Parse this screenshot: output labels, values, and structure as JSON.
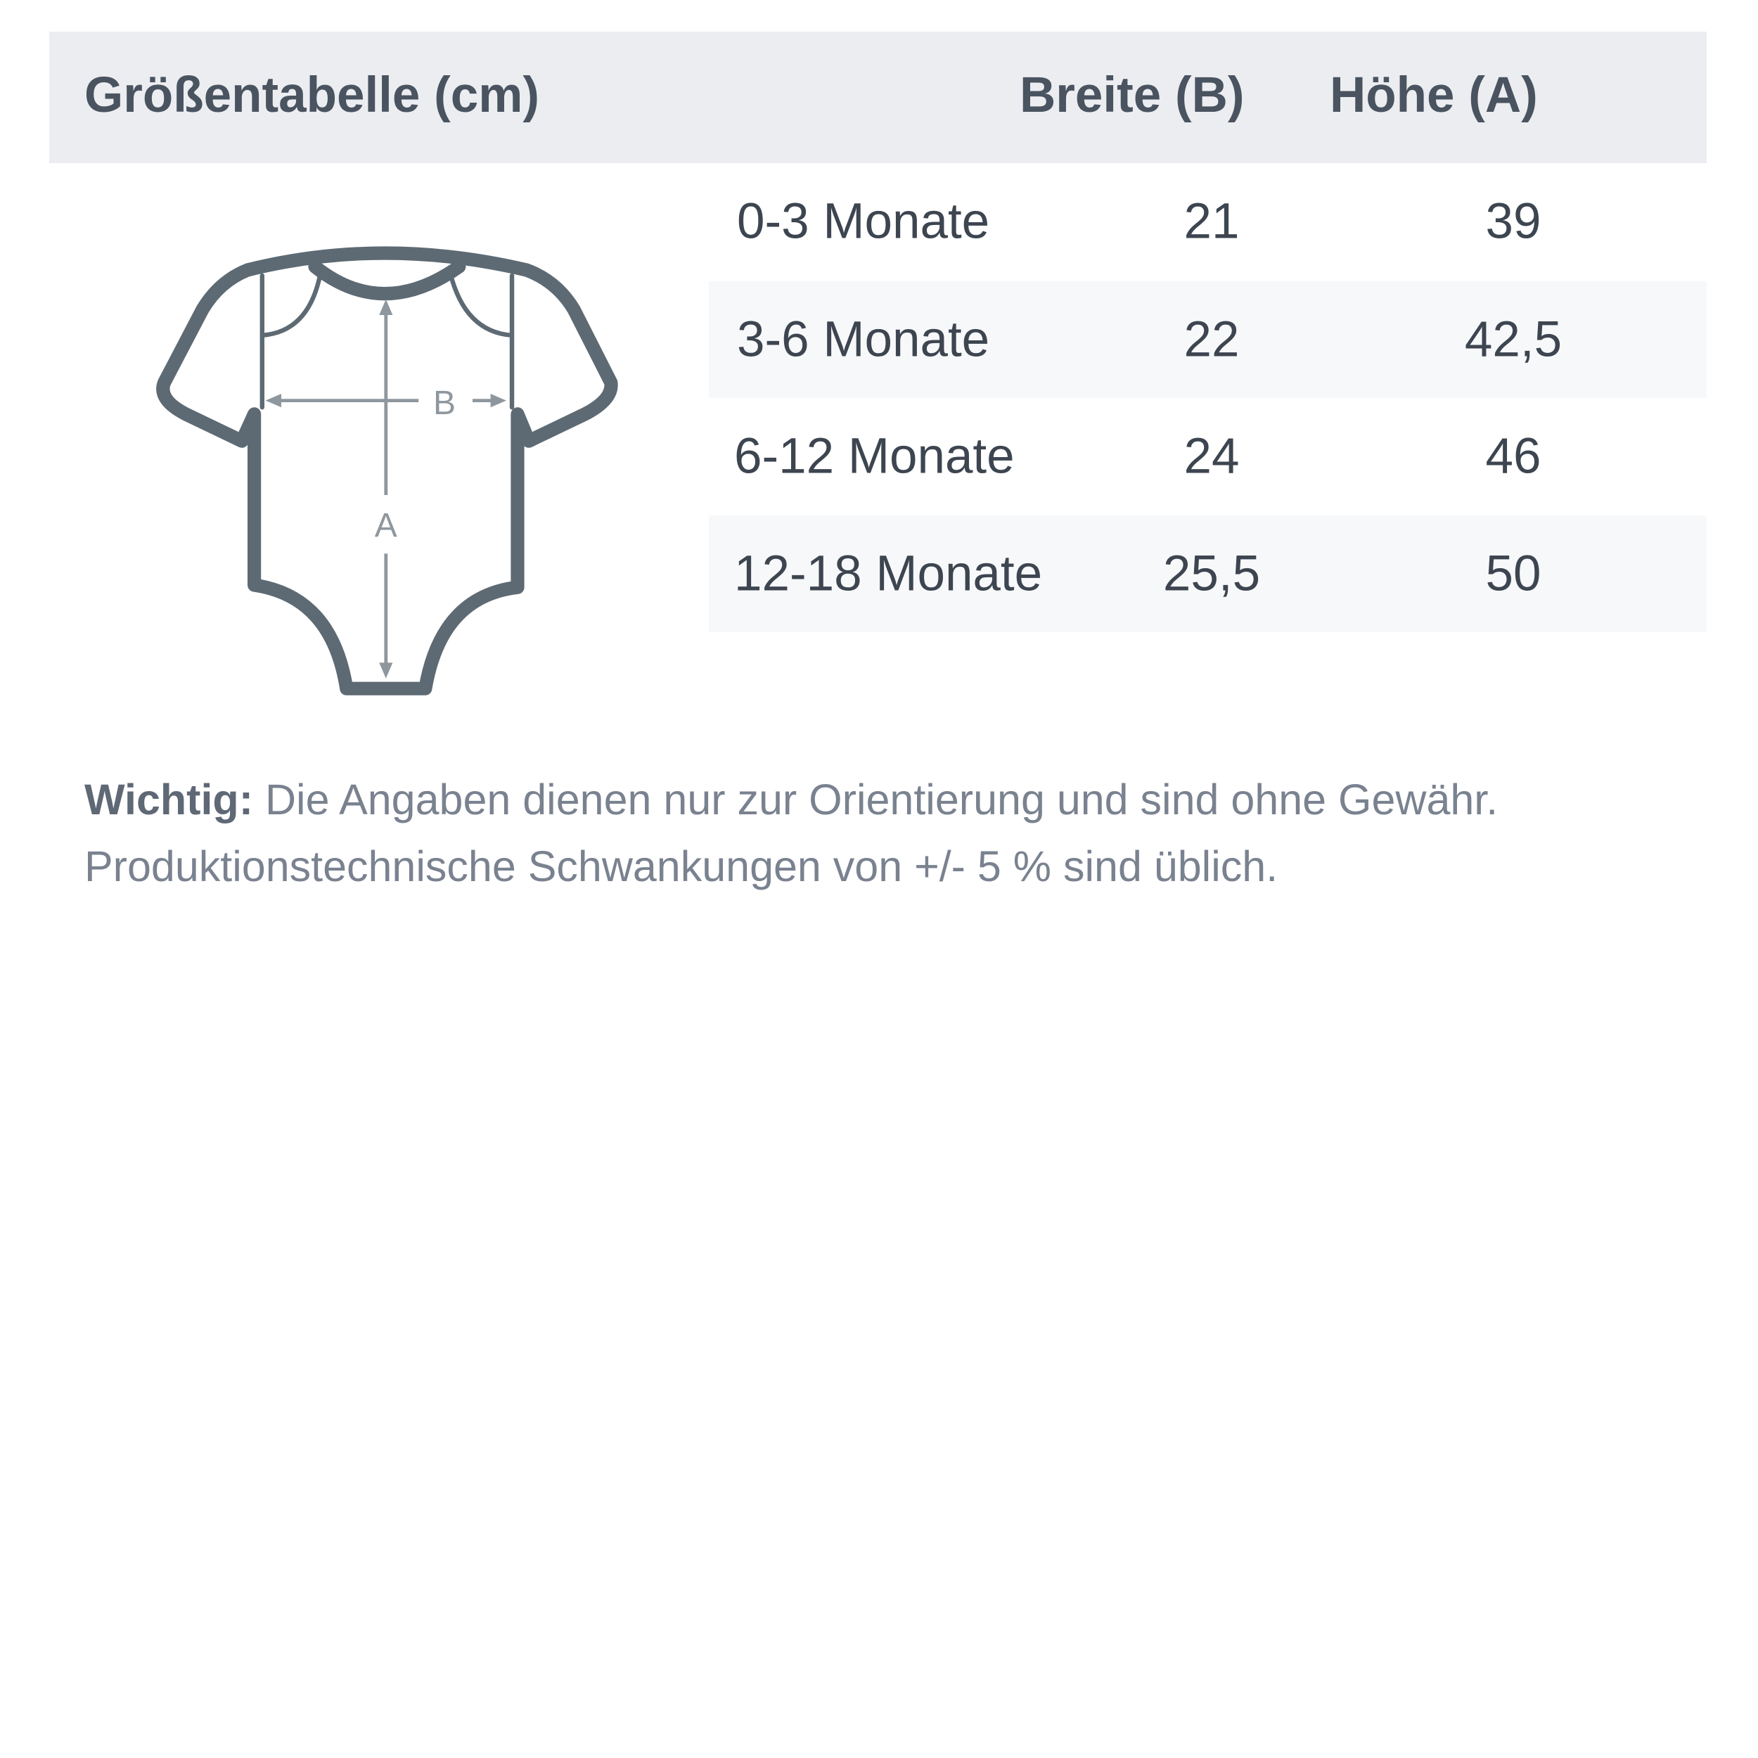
{
  "header": {
    "title": "Größentabelle (cm)",
    "col_width": "Breite (B)",
    "col_height": "Höhe (A)"
  },
  "rows": [
    {
      "size": "0-3 Monate",
      "width": "21",
      "height": "39"
    },
    {
      "size": "3-6 Monate",
      "width": "22",
      "height": "42,5"
    },
    {
      "size": "6-12 Monate",
      "width": "24",
      "height": "46"
    },
    {
      "size": "12-18 Monate",
      "width": "25,5",
      "height": "50"
    }
  ],
  "diagram": {
    "label_b": "B",
    "label_a": "A",
    "icon": "baby-bodysuit-icon"
  },
  "note": {
    "bold": "Wichtig:",
    "line1": " Die Angaben dienen nur zur Orientierung und sind ohne Gewähr.",
    "line2": "Produktionstechnische Schwankungen von +/- 5 % sind üblich."
  },
  "colors": {
    "header_bg": "#ebedf0",
    "stripe": "#f7f8fa",
    "outline": "#5d6a73",
    "arrow": "#8f979e"
  }
}
